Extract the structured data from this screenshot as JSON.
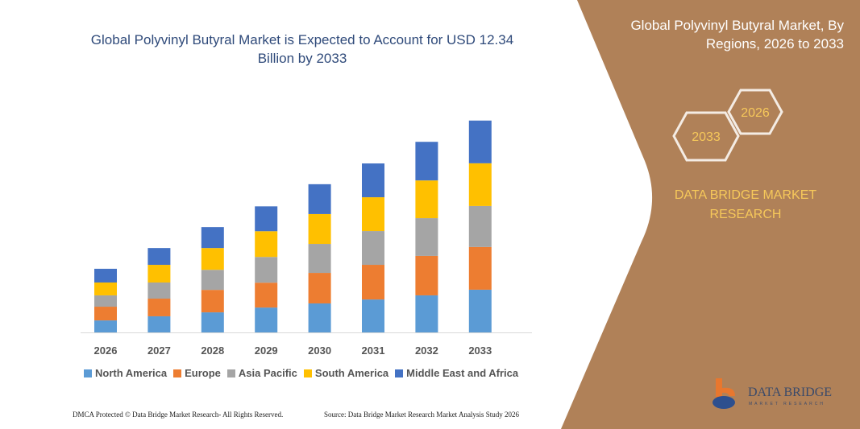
{
  "title": "Global Polyvinyl Butyral Market is Expected to Account for USD 12.34 Billion by 2033",
  "side_panel": {
    "title": "Global Polyvinyl Butyral Market, By Regions, 2026 to 2033",
    "hex_start": "2026",
    "hex_end": "2033",
    "brand": "DATA BRIDGE MARKET RESEARCH",
    "logo_text": "DATA BRIDGE",
    "logo_sub": "MARKET RESEARCH",
    "color": "#B08158"
  },
  "footer": {
    "left": "DMCA Protected © Data Bridge Market Research- All Rights Reserved.",
    "right": "Source: Data Bridge Market Research Market Analysis Study 2026"
  },
  "chart_data": {
    "type": "bar",
    "stacked": true,
    "categories": [
      "2026",
      "2027",
      "2028",
      "2029",
      "2030",
      "2031",
      "2032",
      "2033"
    ],
    "ylim": [
      0,
      12.34
    ],
    "grid": false,
    "legend": "bottom",
    "series": [
      {
        "name": "North America",
        "color": "#5B9BD5",
        "values": [
          0.7,
          0.94,
          1.17,
          1.45,
          1.69,
          1.92,
          2.16,
          2.49
        ]
      },
      {
        "name": "Europe",
        "color": "#ED7D31",
        "values": [
          0.8,
          1.03,
          1.31,
          1.45,
          1.78,
          2.02,
          2.3,
          2.49
        ]
      },
      {
        "name": "Asia Pacific",
        "color": "#A5A5A5",
        "values": [
          0.66,
          0.94,
          1.17,
          1.5,
          1.69,
          1.97,
          2.2,
          2.39
        ]
      },
      {
        "name": "South America",
        "color": "#FFC000",
        "values": [
          0.75,
          1.03,
          1.27,
          1.5,
          1.74,
          1.97,
          2.2,
          2.49
        ]
      },
      {
        "name": "Middle East and Africa",
        "color": "#4472C4",
        "values": [
          0.8,
          0.98,
          1.22,
          1.45,
          1.74,
          1.97,
          2.25,
          2.49
        ]
      }
    ]
  }
}
